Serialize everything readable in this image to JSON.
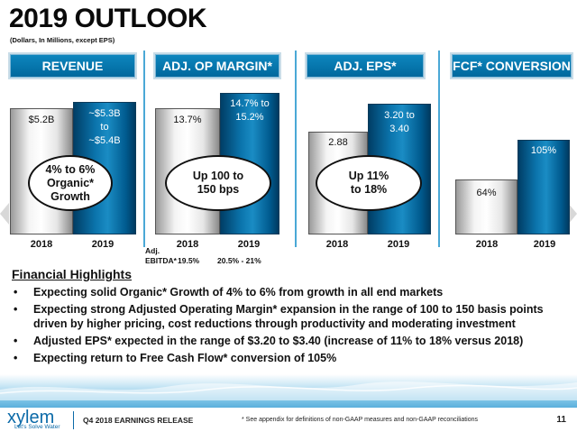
{
  "slide": {
    "title": "2019 OUTLOOK",
    "subtitle": "(Dollars, In Millions, except EPS)"
  },
  "panels": [
    {
      "header": "REVENUE",
      "bar_2018": "$5.2B",
      "bar_2019": "~$5.3B\nto\n~$5.4B",
      "callout": "4% to 6%\nOrganic*\nGrowth",
      "year_2018": "2018",
      "year_2019": "2019"
    },
    {
      "header": "ADJ. OP MARGIN*",
      "bar_2018": "13.7%",
      "bar_2019": "14.7% to\n15.2%",
      "callout": "Up 100 to\n150 bps",
      "year_2018": "2018",
      "year_2019": "2019",
      "ebitda_label": "Adj.\nEBITDA*",
      "ebitda_2018": "19.5%",
      "ebitda_2019": "20.5% - 21%"
    },
    {
      "header": "ADJ. EPS*",
      "bar_2018": "2.88",
      "bar_2019": "3.20 to\n3.40",
      "callout": "Up 11%\nto 18%",
      "year_2018": "2018",
      "year_2019": "2019"
    },
    {
      "header": "FCF* CONVERSION",
      "bar_2018": "64%",
      "bar_2019": "105%",
      "year_2018": "2018",
      "year_2019": "2019"
    }
  ],
  "highlights": {
    "title": "Financial Highlights",
    "bullets": [
      "Expecting solid Organic* Growth of 4% to 6% from growth in all end markets",
      "Expecting strong Adjusted Operating Margin* expansion in the range of 100 to 150 basis points driven by higher pricing, cost reductions through productivity and moderating investment",
      "Adjusted EPS* expected in the range of $3.20 to $3.40 (increase of 11% to 18% versus 2018)",
      "Expecting return to Free Cash Flow* conversion of 105%"
    ]
  },
  "footer": {
    "logo": "xylem",
    "tagline": "Let's Solve Water",
    "release": "Q4 2018 EARNINGS RELEASE",
    "note": "*  See appendix for definitions of non-GAAP measures and non-GAAP reconciliations",
    "page": "11"
  },
  "colors": {
    "accent_blue": "#00689d",
    "divider_blue": "#4aa8d6"
  }
}
